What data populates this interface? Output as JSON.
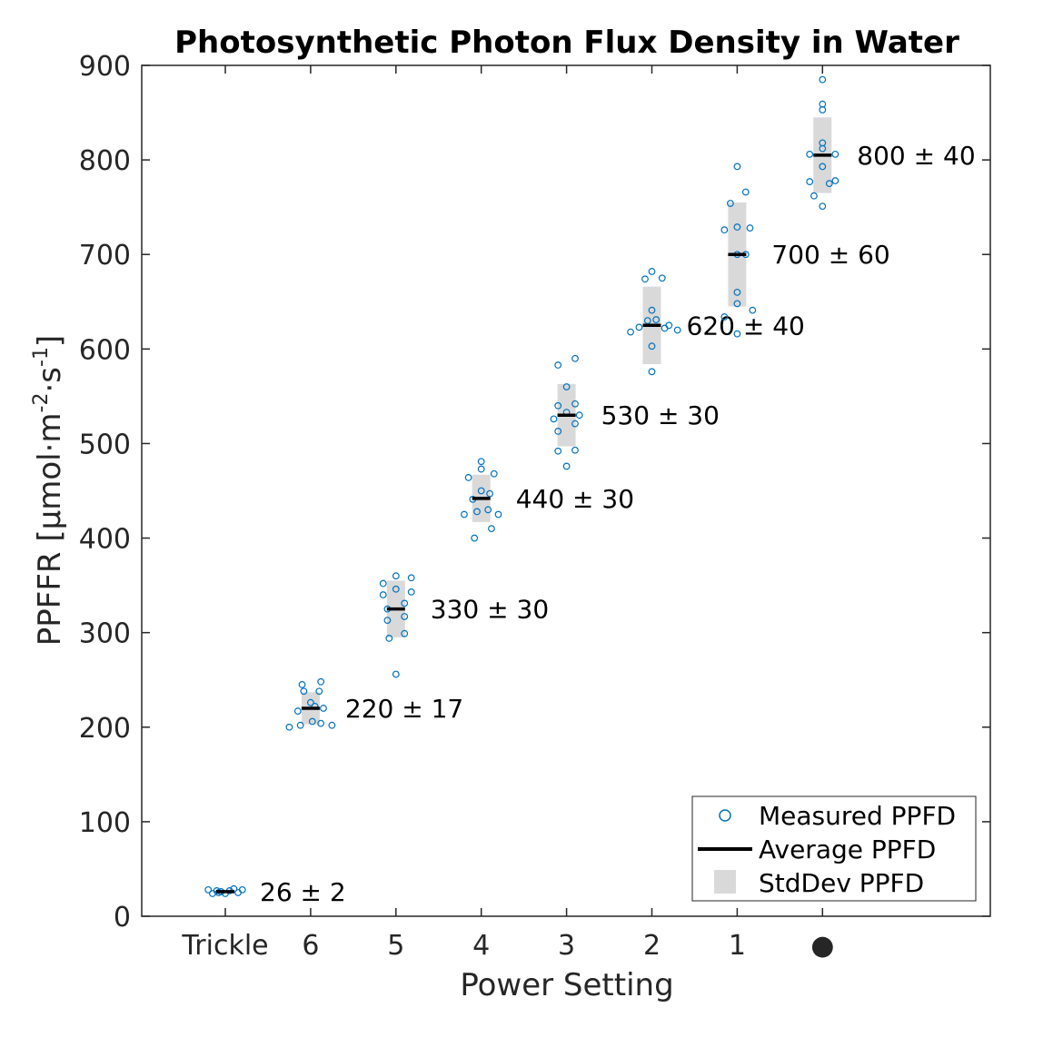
{
  "chart_data": {
    "type": "scatter",
    "title": "Photosynthetic Photon Flux Density in Water",
    "xlabel": "Power Setting",
    "ylabel": "PPFFR [µmol·m-2·s-1]",
    "ylabel_parts": {
      "base": "PPFFR [µmol·m",
      "exp1": "-2",
      "mid": "·s",
      "exp2": "-1",
      "end": "]"
    },
    "categories": [
      "Trickle",
      "6",
      "5",
      "4",
      "3",
      "2",
      "1",
      "●"
    ],
    "ylim": [
      0,
      900
    ],
    "yticks": [
      0,
      100,
      200,
      300,
      400,
      500,
      600,
      700,
      800,
      900
    ],
    "grid": false,
    "legend_position": "bottom-right",
    "legend": [
      "Measured PPFD",
      "Average PPFD",
      "StdDev PPFD"
    ],
    "colors": {
      "points": "#0072BD",
      "average": "#000000",
      "stddev": "#D9D9D9"
    },
    "groups": [
      {
        "category": "Trickle",
        "mean": 26,
        "sd": 2,
        "label": "26 ± 2",
        "points": [
          [
            -0.2,
            28
          ],
          [
            -0.15,
            24
          ],
          [
            -0.1,
            27
          ],
          [
            -0.05,
            26
          ],
          [
            0,
            24
          ],
          [
            0.05,
            27
          ],
          [
            0.1,
            29
          ],
          [
            0.15,
            25
          ],
          [
            0.2,
            28
          ],
          [
            -0.08,
            25
          ]
        ]
      },
      {
        "category": "6",
        "mean": 220,
        "sd": 17,
        "label": "220 ± 17",
        "points": [
          [
            -0.25,
            200
          ],
          [
            -0.12,
            202
          ],
          [
            -0.1,
            245
          ],
          [
            -0.08,
            238
          ],
          [
            -0.15,
            217
          ],
          [
            0,
            226
          ],
          [
            0.02,
            206
          ],
          [
            0.05,
            222
          ],
          [
            0.12,
            248
          ],
          [
            0.1,
            238
          ],
          [
            0.15,
            220
          ],
          [
            0.12,
            204
          ],
          [
            0.25,
            202
          ]
        ]
      },
      {
        "category": "5",
        "mean": 325,
        "sd": 30,
        "label": "330 ± 30",
        "points": [
          [
            -0.15,
            352
          ],
          [
            -0.15,
            340
          ],
          [
            -0.1,
            325
          ],
          [
            -0.1,
            313
          ],
          [
            -0.08,
            294
          ],
          [
            0,
            360
          ],
          [
            0,
            346
          ],
          [
            0.1,
            331
          ],
          [
            0.1,
            317
          ],
          [
            0.1,
            299
          ],
          [
            0.18,
            358
          ],
          [
            0.18,
            343
          ],
          [
            0,
            256
          ]
        ]
      },
      {
        "category": "4",
        "mean": 442,
        "sd": 25,
        "label": "440 ± 30",
        "points": [
          [
            -0.15,
            464
          ],
          [
            -0.2,
            425
          ],
          [
            -0.1,
            441
          ],
          [
            -0.08,
            400
          ],
          [
            -0.05,
            428
          ],
          [
            0,
            481
          ],
          [
            0,
            473
          ],
          [
            0,
            450
          ],
          [
            0.08,
            430
          ],
          [
            0.1,
            447
          ],
          [
            0.12,
            410
          ],
          [
            0.15,
            468
          ],
          [
            0.2,
            425
          ]
        ]
      },
      {
        "category": "3",
        "mean": 530,
        "sd": 33,
        "label": "530 ± 30",
        "points": [
          [
            -0.15,
            526
          ],
          [
            -0.1,
            583
          ],
          [
            -0.1,
            540
          ],
          [
            -0.1,
            513
          ],
          [
            -0.1,
            492
          ],
          [
            0,
            560
          ],
          [
            0,
            533
          ],
          [
            0,
            476
          ],
          [
            0.1,
            590
          ],
          [
            0.1,
            542
          ],
          [
            0.1,
            521
          ],
          [
            0.1,
            493
          ],
          [
            0.15,
            530
          ]
        ]
      },
      {
        "category": "2",
        "mean": 625,
        "sd": 41,
        "label": "620 ± 40",
        "points": [
          [
            -0.25,
            618
          ],
          [
            -0.15,
            623
          ],
          [
            -0.08,
            674
          ],
          [
            -0.05,
            630
          ],
          [
            0,
            682
          ],
          [
            0,
            641
          ],
          [
            0,
            603
          ],
          [
            0,
            576
          ],
          [
            0.05,
            631
          ],
          [
            0.12,
            675
          ],
          [
            0.2,
            625
          ],
          [
            0.3,
            620
          ],
          [
            0.15,
            622
          ]
        ]
      },
      {
        "category": "1",
        "mean": 700,
        "sd": 55,
        "label": "700 ± 60",
        "points": [
          [
            -0.15,
            726
          ],
          [
            -0.15,
            634
          ],
          [
            -0.08,
            754
          ],
          [
            0,
            793
          ],
          [
            0,
            729
          ],
          [
            0,
            700
          ],
          [
            0,
            660
          ],
          [
            0,
            648
          ],
          [
            0,
            616
          ],
          [
            0.1,
            766
          ],
          [
            0.1,
            700
          ],
          [
            0.15,
            728
          ],
          [
            0.18,
            641
          ]
        ]
      },
      {
        "category": "●",
        "mean": 805,
        "sd": 40,
        "label": "800 ± 40",
        "points": [
          [
            -0.15,
            806
          ],
          [
            -0.15,
            777
          ],
          [
            -0.1,
            762
          ],
          [
            0,
            885
          ],
          [
            0,
            859
          ],
          [
            0,
            853
          ],
          [
            0,
            818
          ],
          [
            0,
            812
          ],
          [
            0,
            793
          ],
          [
            0,
            751
          ],
          [
            0.08,
            775
          ],
          [
            0.15,
            806
          ],
          [
            0.15,
            778
          ]
        ]
      }
    ]
  }
}
